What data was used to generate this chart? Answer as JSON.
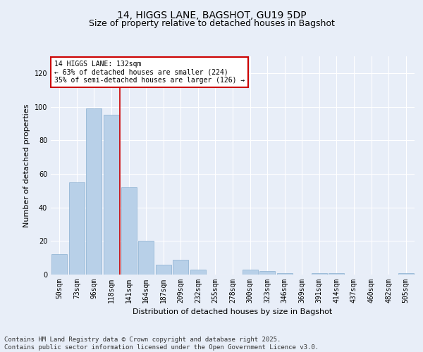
{
  "title": "14, HIGGS LANE, BAGSHOT, GU19 5DP",
  "subtitle": "Size of property relative to detached houses in Bagshot",
  "xlabel": "Distribution of detached houses by size in Bagshot",
  "ylabel": "Number of detached properties",
  "categories": [
    "50sqm",
    "73sqm",
    "96sqm",
    "118sqm",
    "141sqm",
    "164sqm",
    "187sqm",
    "209sqm",
    "232sqm",
    "255sqm",
    "278sqm",
    "300sqm",
    "323sqm",
    "346sqm",
    "369sqm",
    "391sqm",
    "414sqm",
    "437sqm",
    "460sqm",
    "482sqm",
    "505sqm"
  ],
  "values": [
    12,
    55,
    99,
    95,
    52,
    20,
    6,
    9,
    3,
    0,
    0,
    3,
    2,
    1,
    0,
    1,
    1,
    0,
    0,
    0,
    1
  ],
  "bar_color": "#b8d0e8",
  "bar_edge_color": "#8ab0d0",
  "ylim": [
    0,
    130
  ],
  "yticks": [
    0,
    20,
    40,
    60,
    80,
    100,
    120
  ],
  "red_line_x": 3.5,
  "annotation_text": "14 HIGGS LANE: 132sqm\n← 63% of detached houses are smaller (224)\n35% of semi-detached houses are larger (126) →",
  "annotation_box_color": "#ffffff",
  "annotation_box_edge": "#cc0000",
  "footer_line1": "Contains HM Land Registry data © Crown copyright and database right 2025.",
  "footer_line2": "Contains public sector information licensed under the Open Government Licence v3.0.",
  "background_color": "#e8eef8",
  "grid_color": "#ffffff",
  "title_fontsize": 10,
  "subtitle_fontsize": 9,
  "tick_fontsize": 7,
  "ylabel_fontsize": 8,
  "xlabel_fontsize": 8,
  "footer_fontsize": 6.5,
  "annotation_fontsize": 7
}
